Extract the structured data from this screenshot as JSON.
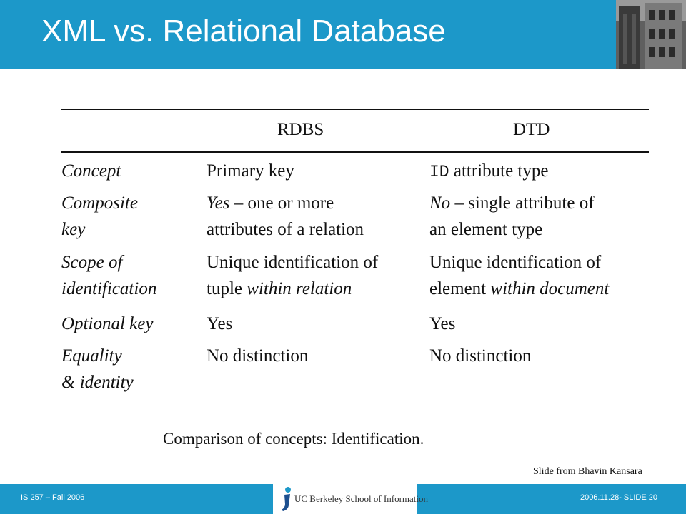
{
  "slide": {
    "title": "XML vs. Relational Database",
    "table": {
      "headers": [
        "RDBS",
        "DTD"
      ],
      "rows": [
        {
          "concept": [
            "Concept"
          ],
          "rdbs": [
            [
              "Primary key"
            ]
          ],
          "dtd": [
            [
              "ID",
              " attribute type"
            ]
          ]
        },
        {
          "concept": [
            "Composite",
            "key"
          ],
          "rdbs": [
            [
              "Yes",
              " – one or more"
            ],
            [
              "attributes of a relation"
            ]
          ],
          "dtd": [
            [
              "No",
              " – single attribute of"
            ],
            [
              "an element type"
            ]
          ]
        },
        {
          "concept": [
            "Scope of",
            "identification"
          ],
          "rdbs": [
            [
              "Unique identification of"
            ],
            [
              "tuple ",
              "within relation"
            ]
          ],
          "dtd": [
            [
              "Unique identification of"
            ],
            [
              "element ",
              "within document"
            ]
          ]
        },
        {
          "concept": [
            "Optional key"
          ],
          "rdbs": [
            [
              "Yes"
            ]
          ],
          "dtd": [
            [
              "Yes"
            ]
          ]
        },
        {
          "concept": [
            "Equality",
            "& identity"
          ],
          "rdbs": [
            [
              "No distinction"
            ]
          ],
          "dtd": [
            [
              "No distinction"
            ]
          ]
        }
      ]
    },
    "caption": "Comparison of concepts: Identification.",
    "credit": "Slide from Bhavin Kansara"
  },
  "footer": {
    "left": "IS 257 – Fall 2006",
    "logo_text": "UC Berkeley School of Information",
    "right": "2006.11.28- SLIDE 20"
  },
  "colors": {
    "accent": "#1c98c9",
    "text": "#111111"
  }
}
